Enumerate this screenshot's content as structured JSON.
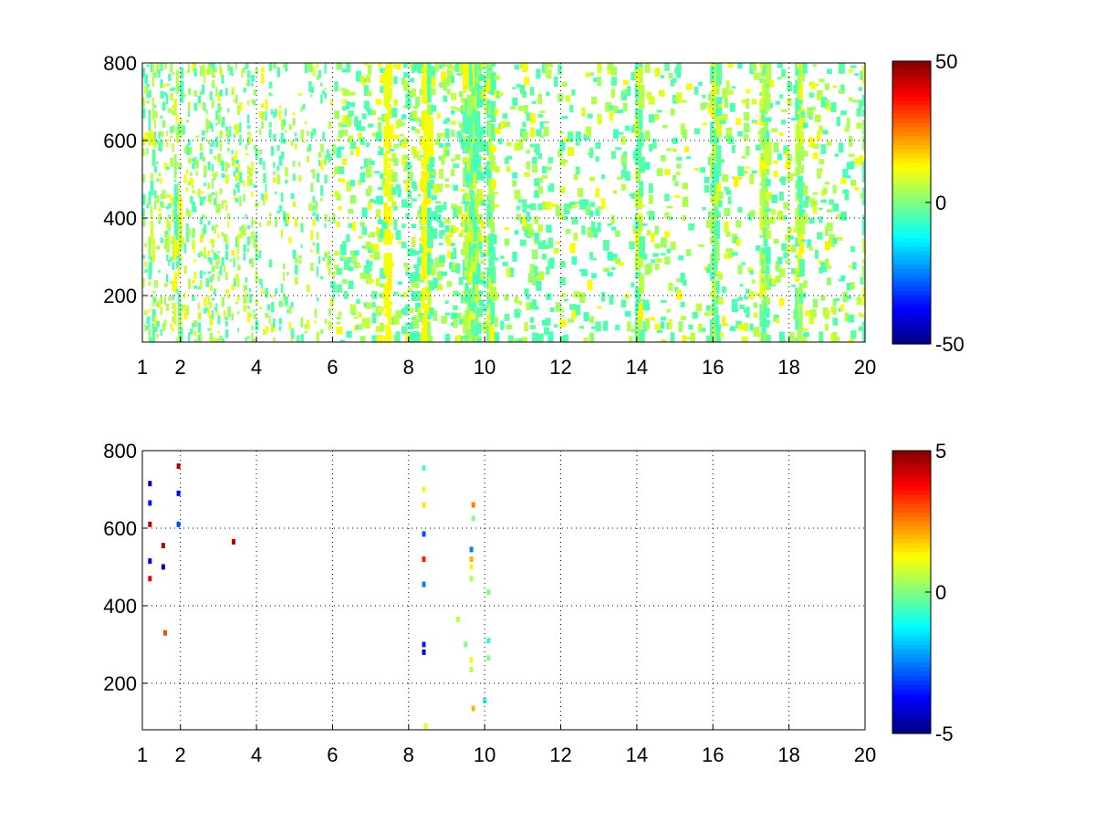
{
  "chart_data": [
    {
      "type": "heatmap",
      "title": "",
      "xlabel": "",
      "ylabel": "",
      "xlim": [
        1,
        20
      ],
      "ylim": [
        80,
        800
      ],
      "x_ticks": [
        1,
        2,
        4,
        6,
        8,
        10,
        12,
        14,
        16,
        18,
        20
      ],
      "y_ticks": [
        200,
        400,
        600,
        800
      ],
      "grid": true,
      "colormap": "jet",
      "colorbar": {
        "min": -50,
        "max": 50,
        "tick_labels": [
          "50",
          "0",
          "-50"
        ]
      },
      "sparsity_note": "dense speckle from x=1 to ~10, sparser columns beyond 10; values mostly near 0 (green / yellow / cyan)",
      "column_groups": [
        {
          "x_from": 1.0,
          "x_to": 4.0,
          "density": 0.55
        },
        {
          "x_from": 4.0,
          "x_to": 7.0,
          "density": 0.3
        },
        {
          "x_from": 7.0,
          "x_to": 10.1,
          "density": 0.35
        },
        {
          "x_from": 10.1,
          "x_to": 20.0,
          "density": 0.18
        }
      ],
      "strong_columns": [
        1.2,
        1.9,
        7.4,
        8.4,
        9.5,
        9.7,
        10.1,
        14.0,
        16.0,
        17.3,
        18.2,
        20.0
      ]
    },
    {
      "type": "heatmap",
      "title": "",
      "xlabel": "",
      "ylabel": "",
      "xlim": [
        1,
        20
      ],
      "ylim": [
        80,
        800
      ],
      "x_ticks": [
        1,
        2,
        4,
        6,
        8,
        10,
        12,
        14,
        16,
        18,
        20
      ],
      "y_ticks": [
        200,
        400,
        600,
        800
      ],
      "grid": true,
      "colormap": "jet",
      "colorbar": {
        "min": -5,
        "max": 5,
        "tick_labels": [
          "5",
          "0",
          "-5"
        ]
      },
      "points": [
        {
          "x": 1.2,
          "y": 715,
          "v": -4.5
        },
        {
          "x": 1.2,
          "y": 665,
          "v": -3.5
        },
        {
          "x": 1.2,
          "y": 610,
          "v": 4.5
        },
        {
          "x": 1.2,
          "y": 515,
          "v": -4.0
        },
        {
          "x": 1.2,
          "y": 470,
          "v": 4.0
        },
        {
          "x": 1.55,
          "y": 555,
          "v": 4.5
        },
        {
          "x": 1.55,
          "y": 500,
          "v": -4.5
        },
        {
          "x": 1.6,
          "y": 330,
          "v": 3.0
        },
        {
          "x": 1.95,
          "y": 760,
          "v": 4.5
        },
        {
          "x": 1.95,
          "y": 690,
          "v": -4.0
        },
        {
          "x": 1.95,
          "y": 610,
          "v": -3.0
        },
        {
          "x": 3.4,
          "y": 565,
          "v": 4.5
        },
        {
          "x": 8.4,
          "y": 755,
          "v": -0.5
        },
        {
          "x": 8.4,
          "y": 700,
          "v": 1.0
        },
        {
          "x": 8.4,
          "y": 660,
          "v": 1.5
        },
        {
          "x": 8.4,
          "y": 585,
          "v": -3.0
        },
        {
          "x": 8.4,
          "y": 520,
          "v": 3.5
        },
        {
          "x": 8.4,
          "y": 455,
          "v": -2.5
        },
        {
          "x": 8.4,
          "y": 300,
          "v": -3.5
        },
        {
          "x": 8.4,
          "y": 280,
          "v": -4.5
        },
        {
          "x": 8.45,
          "y": 90,
          "v": 1.0
        },
        {
          "x": 9.3,
          "y": 365,
          "v": 0.5
        },
        {
          "x": 9.5,
          "y": 300,
          "v": 0.0
        },
        {
          "x": 9.7,
          "y": 660,
          "v": 2.5
        },
        {
          "x": 9.7,
          "y": 625,
          "v": 0.0
        },
        {
          "x": 9.65,
          "y": 545,
          "v": -2.5
        },
        {
          "x": 9.65,
          "y": 520,
          "v": 2.0
        },
        {
          "x": 9.65,
          "y": 500,
          "v": 1.0
        },
        {
          "x": 9.65,
          "y": 470,
          "v": 0.5
        },
        {
          "x": 9.65,
          "y": 260,
          "v": 1.0
        },
        {
          "x": 9.65,
          "y": 235,
          "v": 0.5
        },
        {
          "x": 9.7,
          "y": 135,
          "v": 2.0
        },
        {
          "x": 10.0,
          "y": 155,
          "v": -1.0
        },
        {
          "x": 10.1,
          "y": 435,
          "v": 0.0
        },
        {
          "x": 10.1,
          "y": 310,
          "v": -1.0
        },
        {
          "x": 10.1,
          "y": 265,
          "v": 0.0
        }
      ]
    }
  ]
}
